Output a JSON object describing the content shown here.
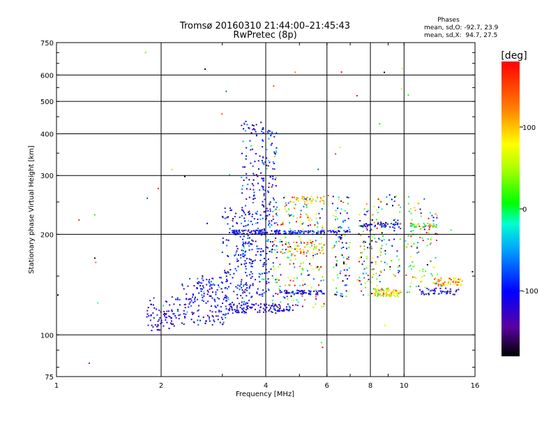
{
  "chart_data": {
    "type": "scatter",
    "title": "Tromsø 20160310 21:44:00–21:45:43",
    "subtitle": "RwPretec (8p)",
    "xlabel": "Frequency [MHz]",
    "ylabel": "Stationary phase Virtual Height [km]",
    "x_scale": "log",
    "y_scale": "log",
    "xlim": [
      1,
      16
    ],
    "ylim": [
      75,
      750
    ],
    "x_ticks": [
      1,
      2,
      4,
      6,
      8,
      10,
      16
    ],
    "y_ticks": [
      75,
      100,
      200,
      300,
      400,
      500,
      600,
      750
    ],
    "grid": true,
    "phases": {
      "heading": "Phases",
      "line_o": "mean, sd,O: -92.7, 23.9",
      "line_x": "mean, sd,X:  94.7, 27.5"
    },
    "colorbar": {
      "label": "[deg]",
      "range": [
        -180,
        180
      ],
      "ticks": [
        100,
        0,
        -100
      ],
      "tick_labels": [
        "100",
        "0",
        "-100"
      ]
    },
    "point_groups": [
      {
        "x_range": [
          1.82,
          2.3
        ],
        "y_range": [
          103,
          130
        ],
        "count": 85,
        "phase_mean": -115,
        "phase_sd": 25
      },
      {
        "x_range": [
          2.3,
          3.1
        ],
        "y_range": [
          107,
          150
        ],
        "count": 170,
        "phase_mean": -110,
        "phase_sd": 25
      },
      {
        "x_range": [
          3.0,
          3.6
        ],
        "y_range": [
          115,
          240
        ],
        "count": 140,
        "phase_mean": -105,
        "phase_sd": 35
      },
      {
        "x_range": [
          3.4,
          3.95
        ],
        "y_range": [
          120,
          440
        ],
        "count": 200,
        "phase_mean": -105,
        "phase_sd": 30
      },
      {
        "x_range": [
          3.9,
          4.3
        ],
        "y_range": [
          130,
          420
        ],
        "count": 150,
        "phase_mean": -100,
        "phase_sd": 35
      },
      {
        "x_range": [
          3.2,
          4.4
        ],
        "y_range": [
          200,
          206
        ],
        "count": 90,
        "phase_mean": -110,
        "phase_sd": 20
      },
      {
        "x_range": [
          3.1,
          4.8
        ],
        "y_range": [
          116,
          124
        ],
        "count": 100,
        "phase_mean": -115,
        "phase_sd": 20
      },
      {
        "x_range": [
          4.2,
          5.9
        ],
        "y_range": [
          120,
          260
        ],
        "count": 230,
        "phase_mean": 40,
        "phase_sd": 110
      },
      {
        "x_range": [
          4.5,
          5.9
        ],
        "y_range": [
          200,
          205
        ],
        "count": 60,
        "phase_mean": -100,
        "phase_sd": 30
      },
      {
        "x_range": [
          4.4,
          5.9
        ],
        "y_range": [
          132,
          136
        ],
        "count": 60,
        "phase_mean": -105,
        "phase_sd": 25
      },
      {
        "x_range": [
          4.4,
          5.9
        ],
        "y_range": [
          175,
          190
        ],
        "count": 50,
        "phase_mean": 95,
        "phase_sd": 40
      },
      {
        "x_range": [
          4.7,
          5.9
        ],
        "y_range": [
          250,
          260
        ],
        "count": 30,
        "phase_mean": 95,
        "phase_sd": 30
      },
      {
        "x_range": [
          6.2,
          7.0
        ],
        "y_range": [
          130,
          260
        ],
        "count": 95,
        "phase_mean": -60,
        "phase_sd": 100
      },
      {
        "x_range": [
          6.0,
          7.0
        ],
        "y_range": [
          202,
          206
        ],
        "count": 25,
        "phase_mean": -110,
        "phase_sd": 20
      },
      {
        "x_range": [
          7.4,
          8.6
        ],
        "y_range": [
          130,
          250
        ],
        "count": 110,
        "phase_mean": 20,
        "phase_sd": 110
      },
      {
        "x_range": [
          7.4,
          9.6
        ],
        "y_range": [
          210,
          216
        ],
        "count": 50,
        "phase_mean": -100,
        "phase_sd": 30
      },
      {
        "x_range": [
          8.2,
          9.8
        ],
        "y_range": [
          130,
          138
        ],
        "count": 80,
        "phase_mean": 85,
        "phase_sd": 40
      },
      {
        "x_range": [
          8.5,
          9.8
        ],
        "y_range": [
          150,
          260
        ],
        "count": 60,
        "phase_mean": -60,
        "phase_sd": 100
      },
      {
        "x_range": [
          10.0,
          12.5
        ],
        "y_range": [
          130,
          260
        ],
        "count": 100,
        "phase_mean": 40,
        "phase_sd": 100
      },
      {
        "x_range": [
          10.3,
          12.4
        ],
        "y_range": [
          210,
          216
        ],
        "count": 40,
        "phase_mean": 40,
        "phase_sd": 70
      },
      {
        "x_range": [
          12.0,
          14.7
        ],
        "y_range": [
          140,
          148
        ],
        "count": 60,
        "phase_mean": 100,
        "phase_sd": 40
      },
      {
        "x_range": [
          11.0,
          14.5
        ],
        "y_range": [
          132,
          138
        ],
        "count": 45,
        "phase_mean": -110,
        "phase_sd": 25
      },
      {
        "x_range": [
          1.0,
          16.0
        ],
        "y_range": [
          76,
          740
        ],
        "count": 50,
        "phase_mean": 0,
        "phase_sd": 150
      }
    ]
  }
}
